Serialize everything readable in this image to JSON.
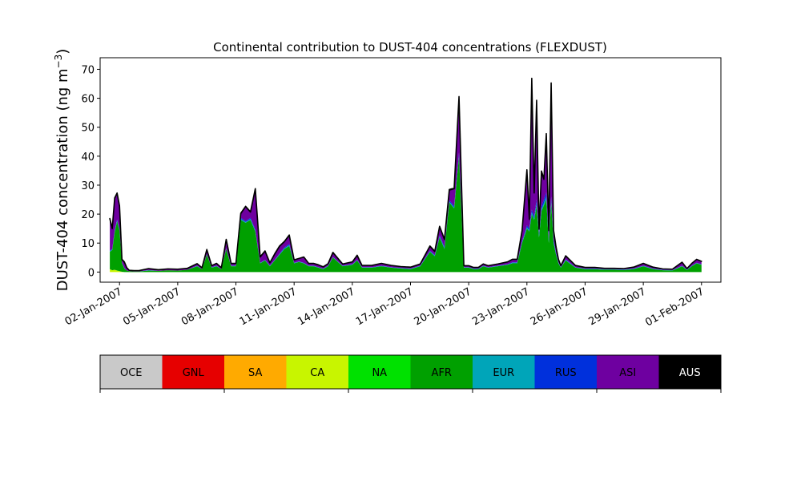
{
  "chart_data": {
    "type": "area",
    "title": "Continental contribution to DUST-404 concentrations (FLEXDUST)",
    "ylabel": "DUST-404 concentration (ng m",
    "ylabel_sup": "−3",
    "ylabel_close": ")",
    "xlabel": "",
    "ylim": [
      -3.5,
      74
    ],
    "xlim": [
      "2007-01-01",
      "2007-02-02"
    ],
    "stacked": true,
    "yticks": [
      0,
      10,
      20,
      30,
      40,
      50,
      60,
      70
    ],
    "xticks": [
      {
        "date": "2007-01-02",
        "label": "02-Jan-2007"
      },
      {
        "date": "2007-01-05",
        "label": "05-Jan-2007"
      },
      {
        "date": "2007-01-08",
        "label": "08-Jan-2007"
      },
      {
        "date": "2007-01-11",
        "label": "11-Jan-2007"
      },
      {
        "date": "2007-01-14",
        "label": "14-Jan-2007"
      },
      {
        "date": "2007-01-17",
        "label": "17-Jan-2007"
      },
      {
        "date": "2007-01-20",
        "label": "20-Jan-2007"
      },
      {
        "date": "2007-01-23",
        "label": "23-Jan-2007"
      },
      {
        "date": "2007-01-26",
        "label": "26-Jan-2007"
      },
      {
        "date": "2007-01-29",
        "label": "29-Jan-2007"
      },
      {
        "date": "2007-02-01",
        "label": "01-Feb-2007"
      }
    ],
    "legend": [
      {
        "name": "OCE",
        "color": "#c9c9c9",
        "text_color": "#000000"
      },
      {
        "name": "GNL",
        "color": "#e60000",
        "text_color": "#000000"
      },
      {
        "name": "SA",
        "color": "#ffaa00",
        "text_color": "#000000"
      },
      {
        "name": "CA",
        "color": "#c8f500",
        "text_color": "#000000"
      },
      {
        "name": "NA",
        "color": "#00e100",
        "text_color": "#000000"
      },
      {
        "name": "AFR",
        "color": "#00a000",
        "text_color": "#000000"
      },
      {
        "name": "EUR",
        "color": "#00a5b9",
        "text_color": "#000000"
      },
      {
        "name": "RUS",
        "color": "#0030dc",
        "text_color": "#000000"
      },
      {
        "name": "ASI",
        "color": "#6e00a0",
        "text_color": "#000000"
      },
      {
        "name": "AUS",
        "color": "#000000",
        "text_color": "#ffffff"
      }
    ],
    "x": [
      "2007-01-01T12",
      "2007-01-01T15",
      "2007-01-01T18",
      "2007-01-01T21",
      "2007-01-02T00",
      "2007-01-02T03",
      "2007-01-02T06",
      "2007-01-02T09",
      "2007-01-02T12",
      "2007-01-02T18",
      "2007-01-03T00",
      "2007-01-03T12",
      "2007-01-04T00",
      "2007-01-04T12",
      "2007-01-05T00",
      "2007-01-05T12",
      "2007-01-06T00",
      "2007-01-06T06",
      "2007-01-06T12",
      "2007-01-06T18",
      "2007-01-07T00",
      "2007-01-07T06",
      "2007-01-07T12",
      "2007-01-07T18",
      "2007-01-08T00",
      "2007-01-08T06",
      "2007-01-08T12",
      "2007-01-08T18",
      "2007-01-09T00",
      "2007-01-09T06",
      "2007-01-09T12",
      "2007-01-09T18",
      "2007-01-10T00",
      "2007-01-10T06",
      "2007-01-10T12",
      "2007-01-10T18",
      "2007-01-11T00",
      "2007-01-11T06",
      "2007-01-11T12",
      "2007-01-11T18",
      "2007-01-12T00",
      "2007-01-12T06",
      "2007-01-12T12",
      "2007-01-12T18",
      "2007-01-13T00",
      "2007-01-13T12",
      "2007-01-14T00",
      "2007-01-14T06",
      "2007-01-14T12",
      "2007-01-15T00",
      "2007-01-15T12",
      "2007-01-16T00",
      "2007-01-16T12",
      "2007-01-17T00",
      "2007-01-17T12",
      "2007-01-18T00",
      "2007-01-18T06",
      "2007-01-18T12",
      "2007-01-18T18",
      "2007-01-19T00",
      "2007-01-19T06",
      "2007-01-19T12",
      "2007-01-19T18",
      "2007-01-20T00",
      "2007-01-20T06",
      "2007-01-20T12",
      "2007-01-20T18",
      "2007-01-21T00",
      "2007-01-21T12",
      "2007-01-22T00",
      "2007-01-22T06",
      "2007-01-22T12",
      "2007-01-22T18",
      "2007-01-23T00",
      "2007-01-23T03",
      "2007-01-23T06",
      "2007-01-23T09",
      "2007-01-23T12",
      "2007-01-23T15",
      "2007-01-23T18",
      "2007-01-23T21",
      "2007-01-24T00",
      "2007-01-24T03",
      "2007-01-24T06",
      "2007-01-24T09",
      "2007-01-24T12",
      "2007-01-24T15",
      "2007-01-24T18",
      "2007-01-25T00",
      "2007-01-25T12",
      "2007-01-26T00",
      "2007-01-26T12",
      "2007-01-27T00",
      "2007-01-27T12",
      "2007-01-28T00",
      "2007-01-28T12",
      "2007-01-29T00",
      "2007-01-29T12",
      "2007-01-30T00",
      "2007-01-30T12",
      "2007-01-31T00",
      "2007-01-31T06",
      "2007-01-31T12",
      "2007-01-31T18",
      "2007-02-01T00"
    ],
    "series": [
      {
        "name": "CA",
        "values": [
          1.0,
          0.6,
          0.8,
          0.5,
          0.3,
          0.1,
          0.0,
          0.0,
          0.0,
          0.0,
          0.0,
          0.0,
          0.0,
          0.0,
          0.0,
          0.0,
          0.0,
          0.0,
          0.0,
          0.0,
          0.0,
          0.0,
          0.0,
          0.0,
          0.0,
          0.0,
          0.0,
          0.0,
          0.0,
          0.0,
          0.0,
          0.0,
          0.0,
          0.0,
          0.0,
          0.0,
          0.0,
          0.0,
          0.0,
          0.0,
          0.0,
          0.0,
          0.0,
          0.0,
          0.0,
          0.0,
          0.0,
          0.0,
          0.0,
          0.0,
          0.0,
          0.0,
          0.0,
          0.0,
          0.0,
          0.0,
          0.0,
          0.0,
          0.0,
          0.0,
          0.0,
          0.0,
          0.0,
          0.0,
          0.0,
          0.0,
          0.0,
          0.0,
          0.0,
          0.0,
          0.0,
          0.0,
          0.0,
          0.0,
          0.0,
          0.0,
          0.0,
          0.0,
          0.0,
          0.0,
          0.0,
          0.0,
          0.0,
          0.0,
          0.0,
          0.0,
          0.0,
          0.0,
          0.0,
          0.0,
          0.0,
          0.0,
          0.0,
          0.0,
          0.0,
          0.0,
          0.0,
          0.0,
          0.0,
          0.0,
          0.0,
          0.0,
          0.0,
          0.0,
          0.0
        ]
      },
      {
        "name": "AFR",
        "values": [
          6.0,
          7.0,
          13.0,
          17.0,
          14.0,
          3.0,
          1.2,
          0.5,
          0.3,
          0.2,
          0.2,
          0.5,
          0.4,
          0.6,
          0.5,
          0.8,
          2.0,
          1.0,
          6.0,
          1.5,
          2.0,
          1.0,
          8.0,
          2.0,
          2.0,
          18.0,
          17.0,
          18.0,
          14.0,
          3.0,
          4.0,
          2.0,
          4.0,
          6.0,
          8.0,
          9.0,
          3.0,
          3.5,
          3.0,
          2.0,
          2.0,
          1.5,
          1.0,
          2.0,
          5.0,
          2.0,
          2.5,
          4.0,
          1.5,
          1.5,
          2.0,
          1.5,
          1.2,
          1.0,
          2.0,
          7.0,
          5.5,
          12.0,
          8.0,
          24.0,
          22.0,
          40.0,
          1.5,
          1.5,
          1.0,
          1.0,
          2.0,
          1.5,
          2.0,
          2.5,
          3.0,
          3.0,
          10.0,
          15.0,
          14.0,
          20.0,
          18.0,
          23.0,
          12.0,
          21.0,
          23.0,
          25.0,
          10.0,
          24.0,
          10.0,
          6.0,
          3.0,
          1.5,
          4.0,
          1.5,
          1.0,
          1.0,
          0.8,
          0.8,
          0.7,
          1.0,
          2.0,
          1.0,
          0.6,
          0.5,
          2.0,
          0.7,
          2.0,
          3.0,
          2.5
        ]
      },
      {
        "name": "EUR",
        "values": [
          0.2,
          0.2,
          0.3,
          0.3,
          0.2,
          0.1,
          0.1,
          0.0,
          0.0,
          0.0,
          0.0,
          0.1,
          0.0,
          0.0,
          0.0,
          0.0,
          0.1,
          0.0,
          0.1,
          0.1,
          0.1,
          0.0,
          0.1,
          0.1,
          0.1,
          0.3,
          0.3,
          0.3,
          0.3,
          0.1,
          0.1,
          0.1,
          0.1,
          0.2,
          0.2,
          0.3,
          0.1,
          0.1,
          0.1,
          0.1,
          0.1,
          0.1,
          0.1,
          0.1,
          0.1,
          0.1,
          0.1,
          0.1,
          0.1,
          0.1,
          0.1,
          0.1,
          0.1,
          0.1,
          0.1,
          0.2,
          0.2,
          0.3,
          0.3,
          0.3,
          0.3,
          0.5,
          0.1,
          0.1,
          0.1,
          0.1,
          0.1,
          0.1,
          0.1,
          0.1,
          0.2,
          0.2,
          0.3,
          0.5,
          0.5,
          0.6,
          0.5,
          0.8,
          0.5,
          0.7,
          0.8,
          1.0,
          0.5,
          0.8,
          0.5,
          0.3,
          0.2,
          0.1,
          0.2,
          0.1,
          0.1,
          0.1,
          0.1,
          0.1,
          0.1,
          0.1,
          0.1,
          0.1,
          0.1,
          0.1,
          0.1,
          0.1,
          0.1,
          0.1,
          0.1
        ]
      },
      {
        "name": "RUS",
        "values": [
          0.2,
          0.2,
          0.4,
          0.4,
          0.3,
          0.1,
          0.1,
          0.0,
          0.0,
          0.0,
          0.0,
          0.1,
          0.0,
          0.0,
          0.0,
          0.0,
          0.1,
          0.0,
          0.1,
          0.1,
          0.1,
          0.0,
          0.1,
          0.1,
          0.1,
          0.4,
          0.3,
          0.4,
          0.4,
          0.1,
          0.1,
          0.1,
          0.1,
          0.2,
          0.3,
          0.4,
          0.1,
          0.1,
          0.1,
          0.1,
          0.1,
          0.1,
          0.1,
          0.1,
          0.1,
          0.1,
          0.1,
          0.1,
          0.1,
          0.1,
          0.1,
          0.1,
          0.1,
          0.1,
          0.1,
          0.2,
          0.2,
          0.4,
          0.4,
          0.5,
          0.5,
          0.8,
          0.1,
          0.1,
          0.1,
          0.1,
          0.1,
          0.1,
          0.1,
          0.1,
          0.2,
          0.2,
          0.4,
          0.6,
          0.7,
          1.0,
          0.8,
          1.2,
          0.8,
          1.0,
          1.2,
          1.5,
          0.8,
          1.2,
          0.8,
          0.4,
          0.2,
          0.1,
          0.2,
          0.1,
          0.1,
          0.1,
          0.1,
          0.1,
          0.1,
          0.1,
          0.1,
          0.1,
          0.1,
          0.1,
          0.1,
          0.1,
          0.1,
          0.1,
          0.1
        ]
      },
      {
        "name": "ASI",
        "values": [
          11.0,
          7.0,
          11.0,
          9.0,
          8.0,
          1.0,
          2.0,
          1.0,
          0.3,
          0.3,
          0.3,
          0.5,
          0.4,
          0.5,
          0.5,
          0.5,
          0.7,
          0.5,
          1.5,
          0.5,
          0.8,
          0.5,
          3.0,
          0.8,
          0.8,
          1.5,
          5.0,
          2.0,
          14.0,
          2.0,
          3.0,
          1.0,
          2.0,
          2.5,
          2.0,
          3.0,
          1.0,
          1.0,
          2.0,
          0.8,
          0.8,
          0.8,
          0.6,
          0.7,
          1.5,
          0.6,
          0.8,
          1.5,
          0.6,
          0.6,
          0.8,
          0.6,
          0.5,
          0.5,
          0.6,
          1.5,
          1.2,
          3.0,
          2.5,
          3.5,
          6.0,
          19.0,
          0.5,
          0.5,
          0.4,
          0.4,
          0.6,
          0.5,
          0.6,
          0.8,
          1.0,
          1.0,
          3.5,
          19.0,
          3.0,
          45.0,
          8.0,
          34.0,
          1.5,
          12.0,
          7.0,
          20.0,
          3.0,
          39.0,
          3.0,
          2.0,
          1.0,
          0.5,
          1.2,
          0.6,
          0.4,
          0.4,
          0.3,
          0.3,
          0.3,
          0.5,
          0.8,
          0.5,
          0.3,
          0.3,
          1.2,
          0.3,
          0.8,
          1.2,
          1.0
        ]
      },
      {
        "name": "AUS",
        "values": [
          0.1,
          0.1,
          0.1,
          0.1,
          0.1,
          0.1,
          0.1,
          0.0,
          0.0,
          0.0,
          0.0,
          0.0,
          0.0,
          0.0,
          0.0,
          0.0,
          0.0,
          0.0,
          0.1,
          0.0,
          0.0,
          0.0,
          0.1,
          0.0,
          0.0,
          0.1,
          0.1,
          0.1,
          0.1,
          0.1,
          0.1,
          0.0,
          0.1,
          0.1,
          0.1,
          0.1,
          0.0,
          0.0,
          0.0,
          0.0,
          0.0,
          0.0,
          0.0,
          0.0,
          0.1,
          0.0,
          0.0,
          0.1,
          0.0,
          0.0,
          0.0,
          0.0,
          0.0,
          0.0,
          0.0,
          0.1,
          0.1,
          0.1,
          0.1,
          0.2,
          0.2,
          0.3,
          0.0,
          0.0,
          0.0,
          0.0,
          0.0,
          0.0,
          0.0,
          0.0,
          0.0,
          0.0,
          0.1,
          0.2,
          0.1,
          0.3,
          0.1,
          0.3,
          0.1,
          0.2,
          0.2,
          0.3,
          0.1,
          0.3,
          0.1,
          0.1,
          0.0,
          0.0,
          0.0,
          0.0,
          0.0,
          0.0,
          0.0,
          0.0,
          0.0,
          0.0,
          0.0,
          0.0,
          0.0,
          0.0,
          0.0,
          0.0,
          0.0,
          0.0,
          0.0
        ]
      }
    ]
  }
}
